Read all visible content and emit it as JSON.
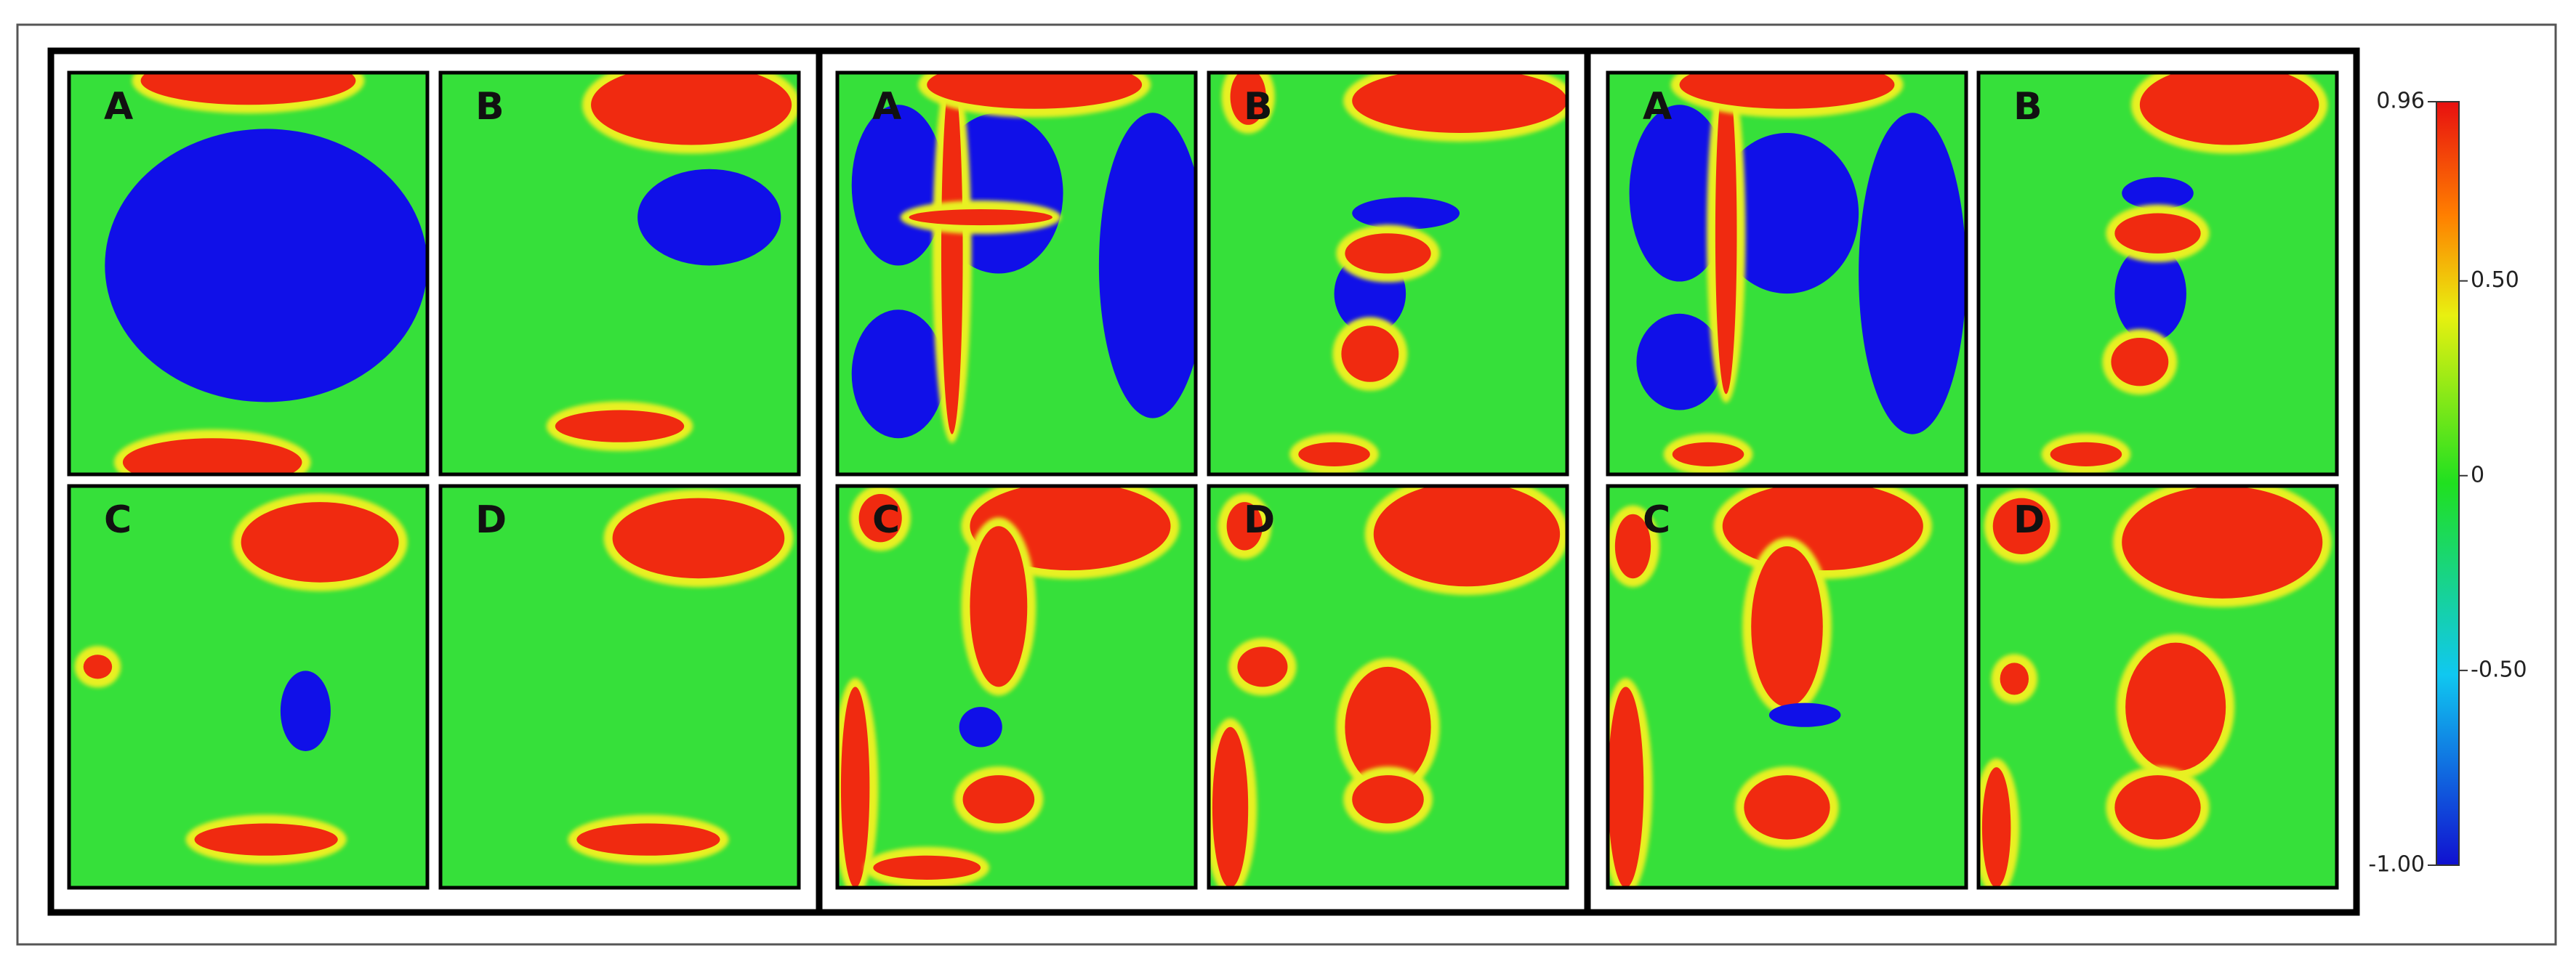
{
  "groups": [
    {
      "panels": [
        "A",
        "B",
        "C",
        "D"
      ]
    },
    {
      "panels": [
        "A",
        "B",
        "C",
        "D"
      ]
    },
    {
      "panels": [
        "A",
        "B",
        "C",
        "D"
      ]
    }
  ],
  "colorbar": {
    "range": [
      -1,
      0.96
    ],
    "ticks": [
      0.96,
      {
        "value": 0.5,
        "label": "0.50"
      },
      0,
      {
        "value": -0.5,
        "label": "-0.50"
      },
      {
        "value": -1,
        "label": "-1.00"
      }
    ]
  }
}
